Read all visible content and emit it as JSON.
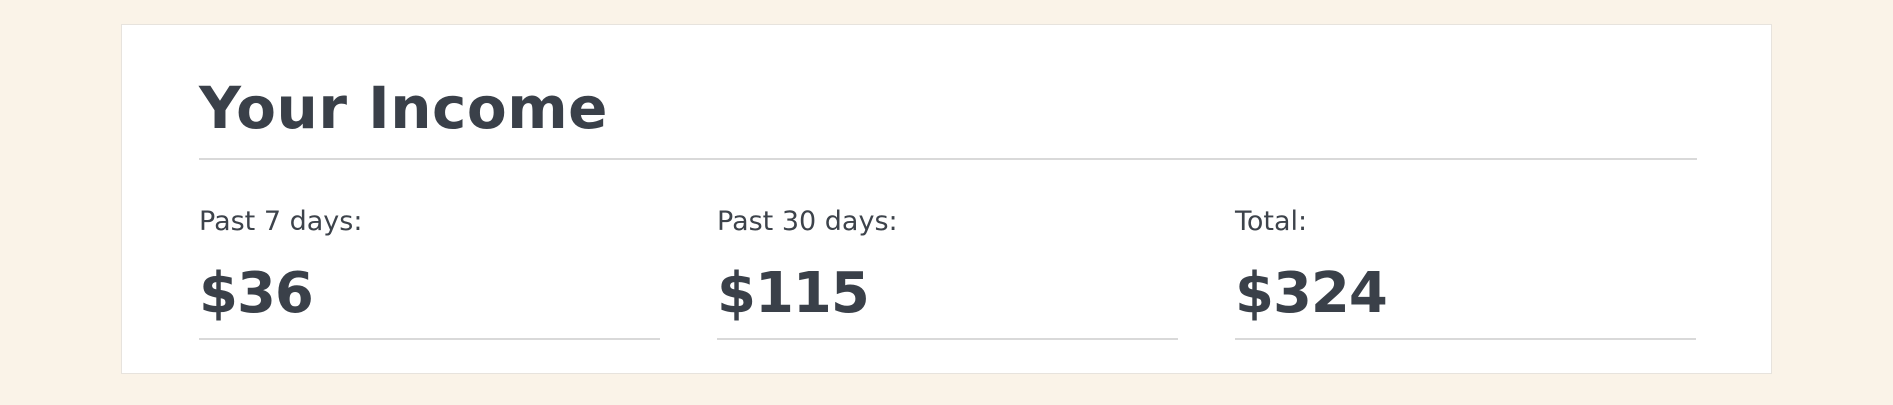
{
  "income": {
    "title": "Your Income",
    "stats": [
      {
        "label": "Past 7 days:",
        "value": "$36"
      },
      {
        "label": "Past 30 days:",
        "value": "$115"
      },
      {
        "label": "Total:",
        "value": "$324"
      }
    ]
  },
  "colors": {
    "page_background": "#faf3e8",
    "card_background": "#ffffff",
    "text": "#3a4049",
    "rule": "#d9d9d9"
  }
}
